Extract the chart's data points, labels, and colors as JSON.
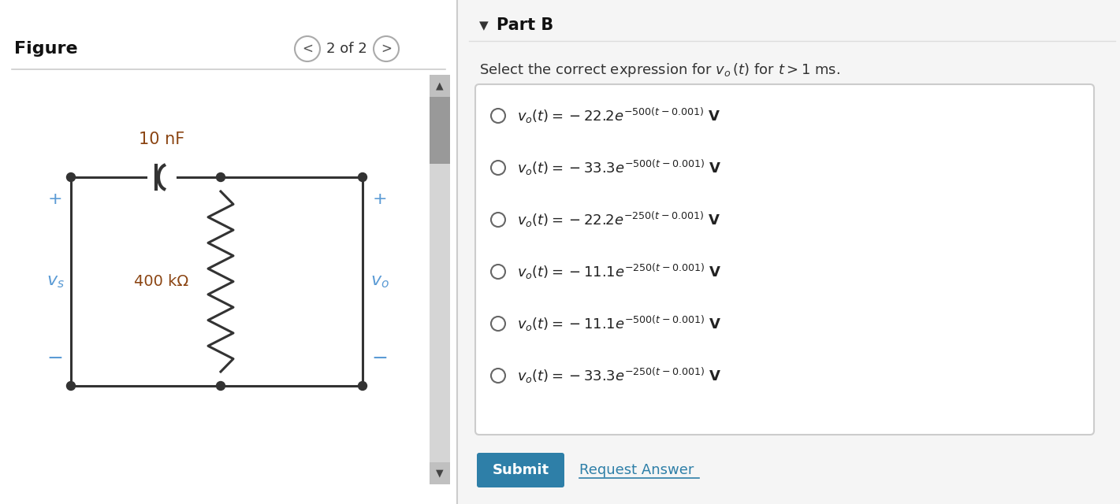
{
  "bg_color": "#ffffff",
  "figure_label": "Figure",
  "nav_label": "2 of 2",
  "cap_label": "10 nF",
  "res_label": "400 kΩ",
  "plus_color": "#5b9bd5",
  "minus_color": "#5b9bd5",
  "component_color": "#8B4513",
  "wire_color": "#333333",
  "part_b_title": "Part B",
  "submit_btn_color": "#2e7fa8",
  "submit_text": "Submit",
  "request_text": "Request Answer",
  "request_color": "#2e7fa8"
}
